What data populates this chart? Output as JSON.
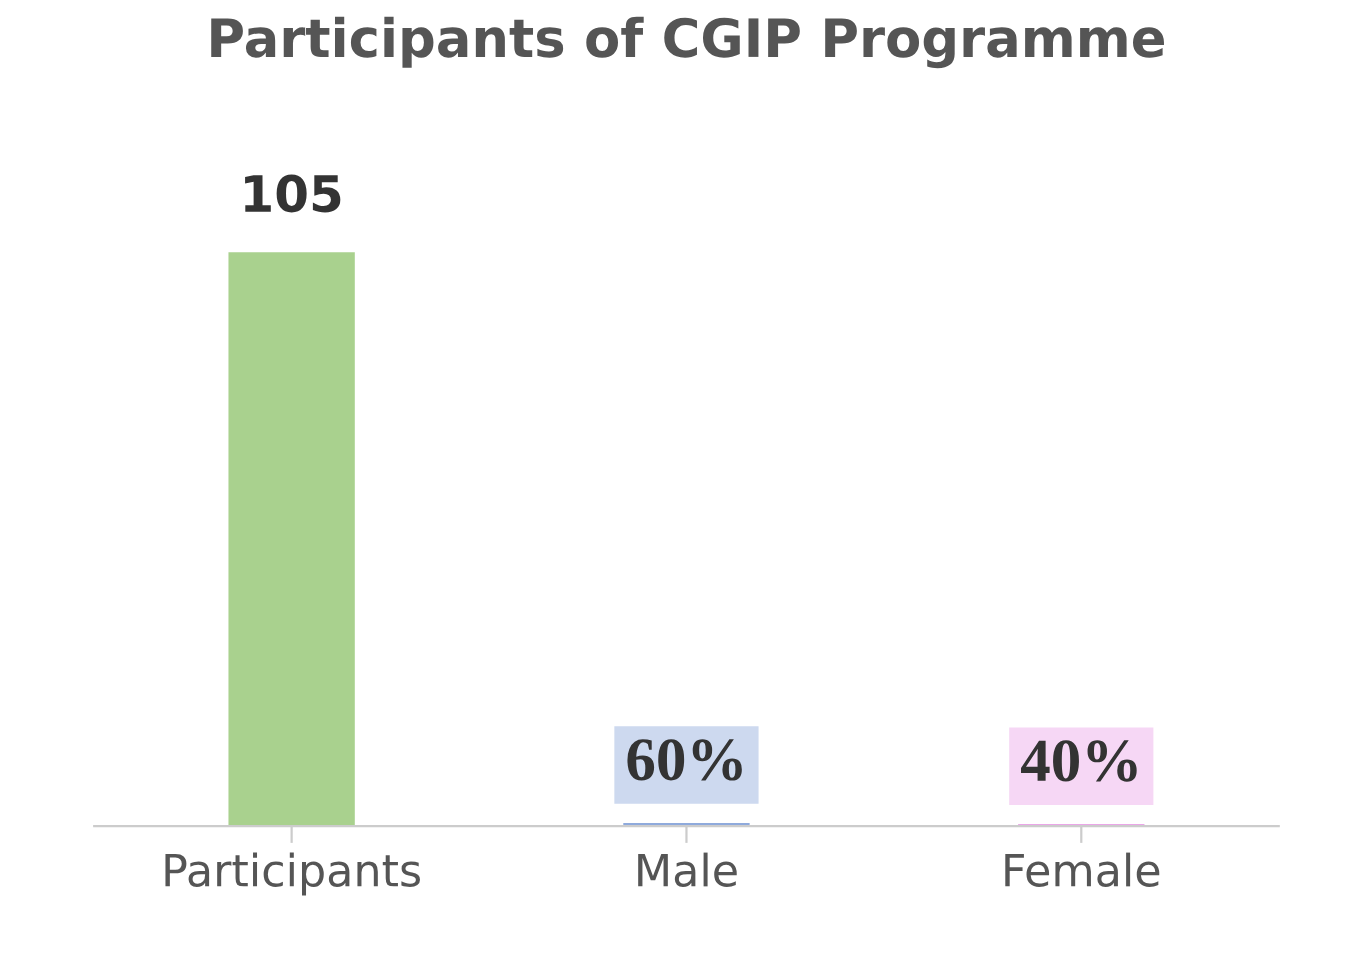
{
  "chart_data": {
    "type": "bar",
    "title": "Participants of CGIP Programme",
    "categories": [
      "Participants",
      "Male",
      "Female"
    ],
    "values": [
      105,
      0.6,
      0.4
    ],
    "colors": [
      "#a9d18e",
      "#8faadc",
      "#eaa6e8"
    ],
    "value_labels": [
      "105",
      "60%",
      "40%"
    ],
    "tick_labels": "x",
    "grid": false,
    "legend": false
  }
}
